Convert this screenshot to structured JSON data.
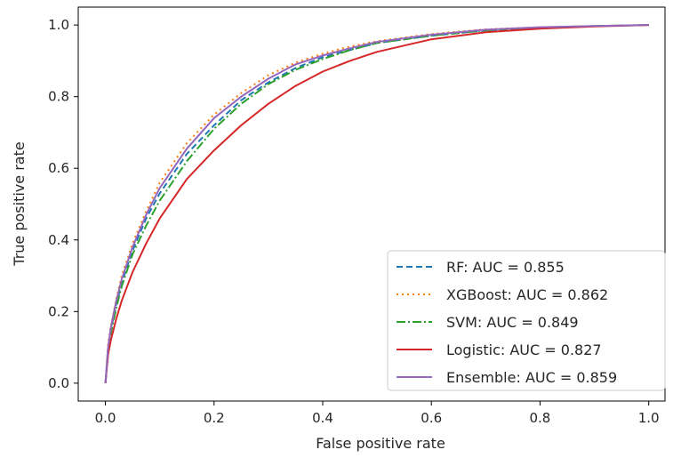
{
  "chart_data": {
    "type": "line",
    "title": "",
    "xlabel": "False positive rate",
    "ylabel": "True positive rate",
    "xlim": [
      -0.05,
      1.03
    ],
    "ylim": [
      -0.05,
      1.05
    ],
    "x_ticks": [
      0.0,
      0.2,
      0.4,
      0.6,
      0.8,
      1.0
    ],
    "y_ticks": [
      0.0,
      0.2,
      0.4,
      0.6,
      0.8,
      1.0
    ],
    "x_tick_labels": [
      "0.0",
      "0.2",
      "0.4",
      "0.6",
      "0.8",
      "1.0"
    ],
    "y_tick_labels": [
      "0.0",
      "0.2",
      "0.4",
      "0.6",
      "0.8",
      "1.0"
    ],
    "grid": false,
    "legend_position": "lower-right",
    "series": [
      {
        "name": "RF: AUC = 0.855",
        "color": "#1f77b4",
        "style": "dashed",
        "x": [
          0.0,
          0.005,
          0.01,
          0.02,
          0.03,
          0.05,
          0.075,
          0.1,
          0.15,
          0.2,
          0.25,
          0.3,
          0.35,
          0.4,
          0.45,
          0.5,
          0.6,
          0.7,
          0.8,
          0.9,
          1.0
        ],
        "y": [
          0.0,
          0.1,
          0.15,
          0.22,
          0.28,
          0.37,
          0.46,
          0.53,
          0.64,
          0.72,
          0.79,
          0.84,
          0.88,
          0.91,
          0.93,
          0.95,
          0.97,
          0.985,
          0.993,
          0.997,
          1.0
        ]
      },
      {
        "name": "XGBoost: AUC = 0.862",
        "color": "#ff7f0e",
        "style": "dotted",
        "x": [
          0.0,
          0.005,
          0.01,
          0.02,
          0.03,
          0.05,
          0.075,
          0.1,
          0.15,
          0.2,
          0.25,
          0.3,
          0.35,
          0.4,
          0.45,
          0.5,
          0.6,
          0.7,
          0.8,
          0.9,
          1.0
        ],
        "y": [
          0.0,
          0.11,
          0.16,
          0.235,
          0.3,
          0.39,
          0.48,
          0.56,
          0.67,
          0.75,
          0.81,
          0.86,
          0.895,
          0.92,
          0.94,
          0.955,
          0.975,
          0.988,
          0.994,
          0.997,
          1.0
        ]
      },
      {
        "name": "SVM: AUC = 0.849",
        "color": "#2ca02c",
        "style": "dashdot",
        "x": [
          0.0,
          0.005,
          0.01,
          0.02,
          0.03,
          0.05,
          0.075,
          0.1,
          0.15,
          0.2,
          0.25,
          0.3,
          0.35,
          0.4,
          0.45,
          0.5,
          0.6,
          0.7,
          0.8,
          0.9,
          1.0
        ],
        "y": [
          0.0,
          0.09,
          0.14,
          0.21,
          0.27,
          0.36,
          0.44,
          0.51,
          0.62,
          0.71,
          0.78,
          0.835,
          0.875,
          0.905,
          0.93,
          0.95,
          0.97,
          0.985,
          0.993,
          0.997,
          1.0
        ]
      },
      {
        "name": "Logistic: AUC = 0.827",
        "color": "#d62728",
        "style": "solid",
        "x": [
          0.0,
          0.005,
          0.01,
          0.02,
          0.03,
          0.05,
          0.075,
          0.1,
          0.15,
          0.2,
          0.25,
          0.3,
          0.35,
          0.4,
          0.45,
          0.5,
          0.6,
          0.7,
          0.8,
          0.9,
          1.0
        ],
        "y": [
          0.0,
          0.08,
          0.12,
          0.18,
          0.23,
          0.31,
          0.39,
          0.46,
          0.57,
          0.65,
          0.72,
          0.78,
          0.83,
          0.87,
          0.9,
          0.925,
          0.96,
          0.98,
          0.99,
          0.996,
          1.0
        ]
      },
      {
        "name": "Ensemble: AUC = 0.859",
        "color": "#9467bd",
        "style": "solid",
        "x": [
          0.0,
          0.005,
          0.01,
          0.02,
          0.03,
          0.05,
          0.075,
          0.1,
          0.15,
          0.2,
          0.25,
          0.3,
          0.35,
          0.4,
          0.45,
          0.5,
          0.6,
          0.7,
          0.8,
          0.9,
          1.0
        ],
        "y": [
          0.0,
          0.1,
          0.155,
          0.23,
          0.29,
          0.38,
          0.47,
          0.545,
          0.655,
          0.74,
          0.8,
          0.85,
          0.89,
          0.915,
          0.935,
          0.953,
          0.973,
          0.987,
          0.994,
          0.997,
          1.0
        ]
      }
    ]
  }
}
